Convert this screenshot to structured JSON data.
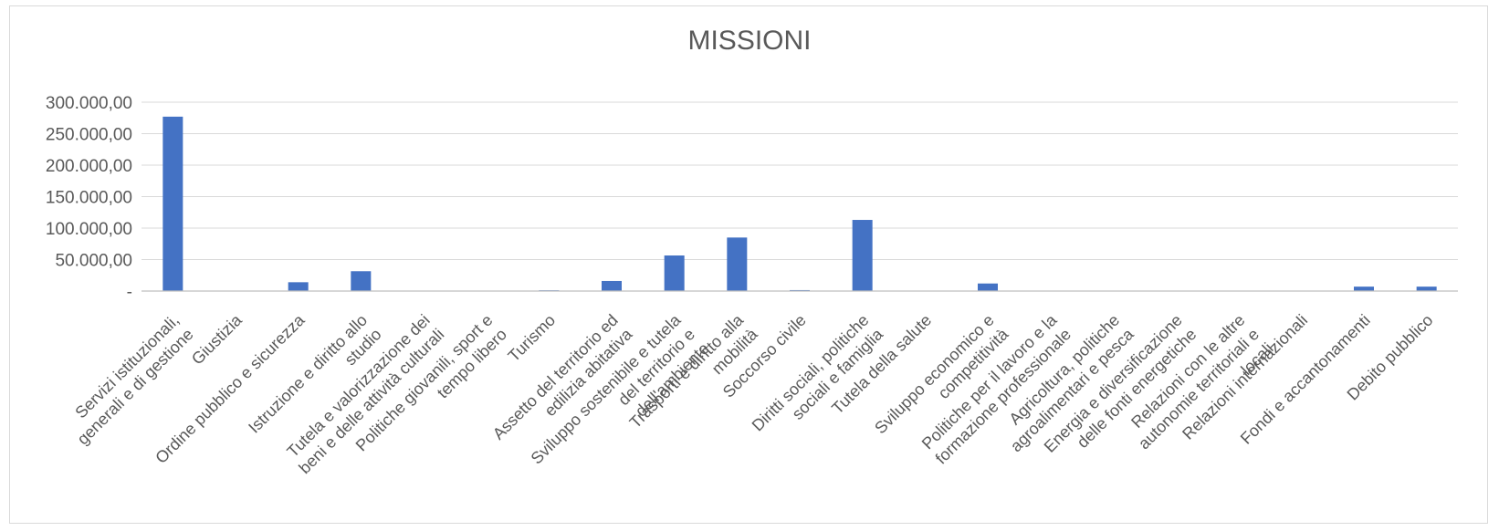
{
  "chart_data": {
    "type": "bar",
    "title": "MISSIONI",
    "xlabel": "",
    "ylabel": "",
    "ylim": [
      0,
      300000
    ],
    "yticks": [
      0,
      50000,
      100000,
      150000,
      200000,
      250000,
      300000
    ],
    "ytick_labels": [
      "-",
      "50.000,00",
      "100.000,00",
      "150.000,00",
      "200.000,00",
      "250.000,00",
      "300.000,00"
    ],
    "grid": true,
    "legend": "none",
    "bar_color": "#4472C4",
    "categories": [
      [
        "Servizi istituzionali,",
        "generali e di gestione"
      ],
      [
        "Giustizia"
      ],
      [
        "Ordine pubblico e sicurezza"
      ],
      [
        "Istruzione e diritto allo",
        "studio"
      ],
      [
        "Tutela e valorizzazione dei",
        "beni e delle attività culturali"
      ],
      [
        "Politiche giovanili, sport e",
        "tempo libero"
      ],
      [
        "Turismo"
      ],
      [
        "Assetto del territorio ed",
        "edilizia abitativa"
      ],
      [
        "Sviluppo sostenibile e tutela",
        "del territorio e",
        "dell'ambiente"
      ],
      [
        "Trasporti e diritto alla",
        "mobilità"
      ],
      [
        "Soccorso civile"
      ],
      [
        "Diritti sociali, politiche",
        "sociali e famiglia"
      ],
      [
        "Tutela della salute"
      ],
      [
        "Sviluppo economico e",
        "competitività"
      ],
      [
        "Politiche per il lavoro e la",
        "formazione professionale"
      ],
      [
        "Agricoltura, politiche",
        "agroalimentari e pesca"
      ],
      [
        "Energia e diversificazione",
        "delle fonti energetiche"
      ],
      [
        "Relazioni con le altre",
        "autonomie territoriali e",
        "locali"
      ],
      [
        "Relazioni internazionali"
      ],
      [
        "Fondi e accantonamenti"
      ],
      [
        "Debito pubblico"
      ]
    ],
    "values": [
      277000,
      0,
      14000,
      31500,
      0,
      0,
      1200,
      16000,
      56500,
      85000,
      1500,
      113000,
      0,
      12000,
      0,
      0,
      0,
      0,
      0,
      7000,
      7000
    ]
  }
}
